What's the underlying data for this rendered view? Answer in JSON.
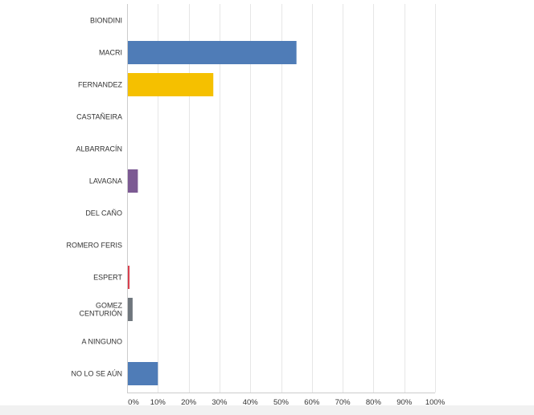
{
  "chart_data": {
    "type": "bar",
    "orientation": "horizontal",
    "categories": [
      "BIONDINI",
      "MACRI",
      "FERNANDEZ",
      "CASTAÑEIRA",
      "ALBARRACÍN",
      "LAVAGNA",
      "DEL CAÑO",
      "ROMERO FERIS",
      "ESPERT",
      [
        "GOMEZ",
        "CENTURIÓN"
      ],
      "A NINGUNO",
      "NO LO SE AÚN"
    ],
    "values": [
      0,
      55,
      28,
      0,
      0,
      3.5,
      0,
      0,
      0.8,
      1.8,
      0,
      10
    ],
    "colors": [
      "#4f7cb7",
      "#4f7cb7",
      "#f5c000",
      "#4f7cb7",
      "#4f7cb7",
      "#7c5a93",
      "#4f7cb7",
      "#4f7cb7",
      "#d9414f",
      "#6f767d",
      "#4f7cb7",
      "#4f7cb7"
    ],
    "x_ticks": [
      "0%",
      "10%",
      "20%",
      "30%",
      "40%",
      "50%",
      "60%",
      "70%",
      "80%",
      "90%",
      "100%"
    ],
    "xlim": [
      0,
      100
    ],
    "grid": true,
    "legend": false
  }
}
